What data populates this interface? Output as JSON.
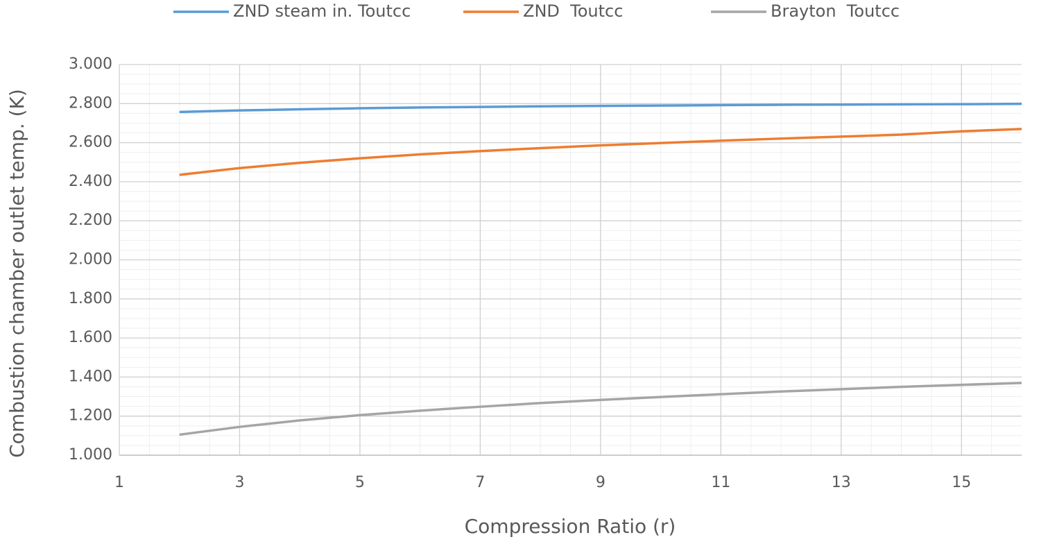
{
  "chart_data": {
    "type": "line",
    "x_label": "Compression Ratio (r)",
    "y_label": "Combustion chamber outlet temp.  (K)",
    "x": [
      2,
      3,
      4,
      5,
      6,
      7,
      8,
      9,
      10,
      11,
      12,
      13,
      14,
      15,
      16
    ],
    "series": [
      {
        "name": "ZND steam in. Toutcc",
        "color": "#5b9bd5",
        "values": [
          2757,
          2765,
          2771,
          2776,
          2780,
          2783,
          2786,
          2788,
          2790,
          2792,
          2794,
          2795,
          2796,
          2797,
          2799
        ]
      },
      {
        "name": "ZND  Toutcc",
        "color": "#ed7d31",
        "values": [
          2435,
          2470,
          2497,
          2520,
          2540,
          2557,
          2572,
          2586,
          2598,
          2610,
          2621,
          2631,
          2641,
          2658,
          2670
        ]
      },
      {
        "name": "Brayton  Toutcc",
        "color": "#a5a5a5",
        "values": [
          1105,
          1145,
          1178,
          1205,
          1228,
          1248,
          1267,
          1283,
          1298,
          1312,
          1326,
          1338,
          1350,
          1360,
          1370
        ]
      }
    ],
    "xlim": [
      1,
      16
    ],
    "xticks": [
      1,
      3,
      5,
      7,
      9,
      11,
      13,
      15
    ],
    "ylim": [
      1000,
      3000
    ],
    "yticks": [
      {
        "value": 1000,
        "label": "1.000"
      },
      {
        "value": 1200,
        "label": "1.200"
      },
      {
        "value": 1400,
        "label": "1.400"
      },
      {
        "value": 1600,
        "label": "1.600"
      },
      {
        "value": 1800,
        "label": "1.800"
      },
      {
        "value": 2000,
        "label": "2.000"
      },
      {
        "value": 2200,
        "label": "2.200"
      },
      {
        "value": 2400,
        "label": "2.400"
      },
      {
        "value": 2600,
        "label": "2.600"
      },
      {
        "value": 2800,
        "label": "2.800"
      },
      {
        "value": 3000,
        "label": "3.000"
      }
    ],
    "grid": true,
    "legend": "top"
  }
}
